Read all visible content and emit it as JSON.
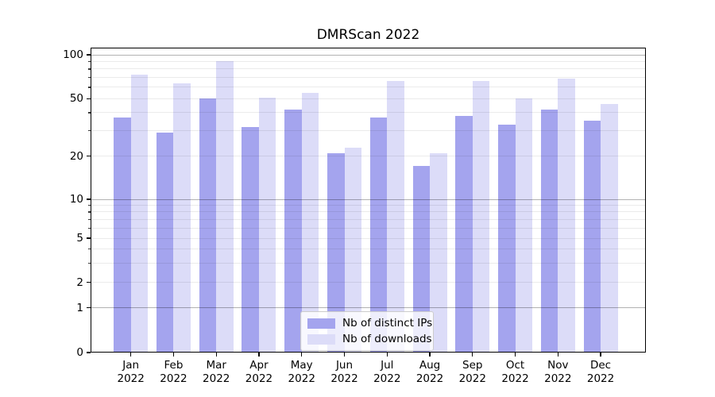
{
  "chart_data": {
    "type": "bar",
    "title": "DMRScan 2022",
    "categories": [
      "Jan 2022",
      "Feb 2022",
      "Mar 2022",
      "Apr 2022",
      "May 2022",
      "Jun 2022",
      "Jul 2022",
      "Aug 2022",
      "Sep 2022",
      "Oct 2022",
      "Nov 2022",
      "Dec 2022"
    ],
    "series": [
      {
        "name": "Nb of distinct IPs",
        "color": "#a4a4ee",
        "values": [
          37,
          29,
          50,
          32,
          42,
          21,
          37,
          17,
          38,
          33,
          42,
          35
        ]
      },
      {
        "name": "Nb of downloads",
        "color": "#dcdcf8",
        "values": [
          73,
          64,
          90,
          51,
          55,
          23,
          66,
          21,
          66,
          50,
          69,
          46
        ]
      }
    ],
    "yscale": "symlog",
    "yticks": [
      100,
      50,
      20,
      10,
      5,
      2,
      1,
      0
    ],
    "ylim": [
      0,
      100
    ],
    "grid": "both",
    "legend": {
      "position": "lower-center",
      "items": [
        "Nb of distinct IPs",
        "Nb of downloads"
      ]
    }
  },
  "colors": {
    "grid_major": "rgba(0,0,0,0.30)",
    "grid_minor": "rgba(0,0,0,0.08)",
    "spine": "#000000",
    "background": "#ffffff"
  }
}
